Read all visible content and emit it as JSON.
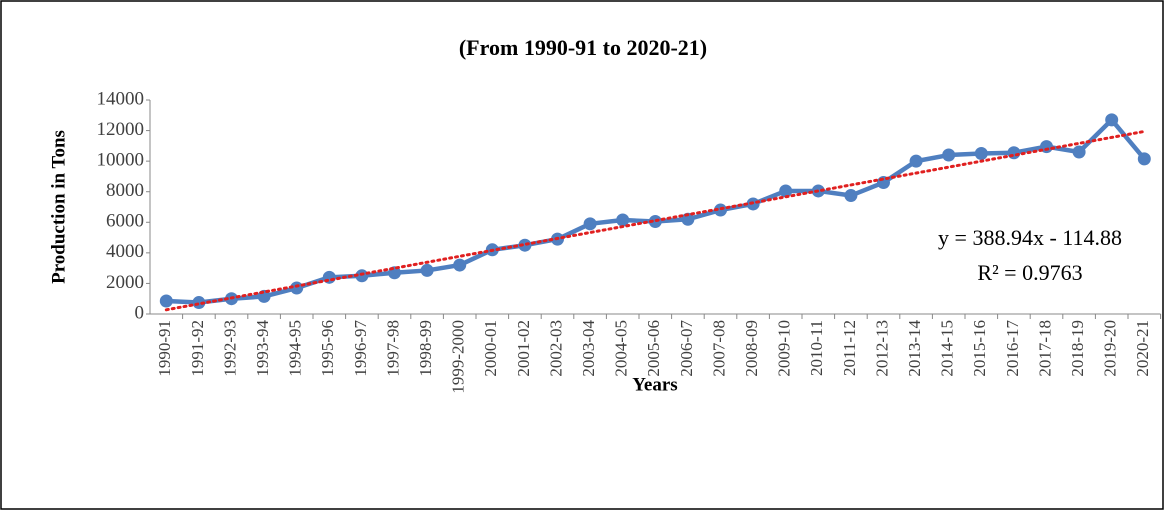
{
  "chart_data": {
    "type": "line",
    "title": "(From 1990-91 to 2020-21)",
    "y_label": "Production in Tons",
    "x_label": "Years",
    "categories": [
      "1990-91",
      "1991-92",
      "1992-93",
      "1993-94",
      "1994-95",
      "1995-96",
      "1996-97",
      "1997-98",
      "1998-99",
      "1999-2000",
      "2000-01",
      "2001-02",
      "2002-03",
      "2003-04",
      "2004-05",
      "2005-06",
      "2006-07",
      "2007-08",
      "2008-09",
      "2009-10",
      "2010-11",
      "2011-12",
      "2012-13",
      "2013-14",
      "2014-15",
      "2015-16",
      "2016-17",
      "2017-18",
      "2018-19",
      "2019-20",
      "2020-21"
    ],
    "series": [
      {
        "name": "Production",
        "color": "#4f7fc0",
        "values": [
          850,
          750,
          1000,
          1150,
          1700,
          2400,
          2500,
          2700,
          2850,
          3200,
          4200,
          4500,
          4900,
          5900,
          6150,
          6050,
          6200,
          6800,
          7200,
          8050,
          8050,
          7750,
          8600,
          10000,
          10400,
          10500,
          10550,
          10950,
          10600,
          12700,
          10150
        ]
      }
    ],
    "trendline": {
      "type": "linear",
      "slope": 388.94,
      "intercept": -114.88,
      "color": "#e02020",
      "equation": "y = 388.94x - 114.88",
      "r_squared": "R² = 0.9763"
    },
    "ylim": [
      0,
      14000
    ],
    "yticks": [
      0,
      2000,
      4000,
      6000,
      8000,
      10000,
      12000,
      14000
    ],
    "grid": false
  }
}
